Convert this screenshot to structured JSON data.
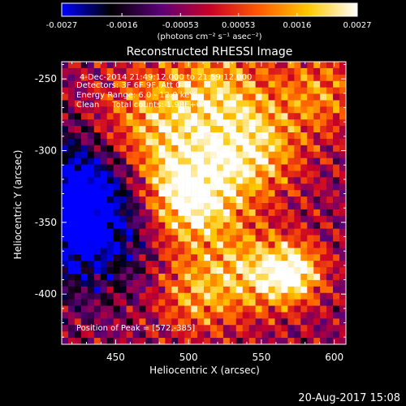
{
  "chart_data": {
    "type": "heatmap",
    "title": "Reconstructed RHESSI Image",
    "xlabel": "Heliocentric X (arcsec)",
    "ylabel": "Heliocentric Y (arcsec)",
    "xlim": [
      413,
      608
    ],
    "ylim": [
      -435,
      -238
    ],
    "x_ticks": [
      450,
      500,
      550,
      600
    ],
    "y_ticks": [
      -250,
      -300,
      -350,
      -400
    ],
    "colorbar": {
      "ticks": [
        "-0.0027",
        "-0.0016",
        "-0.00053",
        "0.00053",
        "0.0016",
        "0.0027"
      ],
      "tick_values": [
        -0.0027,
        -0.0016,
        -0.00053,
        0.00053,
        0.0016,
        0.0027
      ],
      "range": [
        -0.0027,
        0.0027
      ],
      "units": "(photons cm⁻² s⁻¹ asec⁻²)",
      "colors": [
        "#0000ff",
        "#000000",
        "#5a0078",
        "#c80028",
        "#ff5a00",
        "#ffc800",
        "#ffffff"
      ]
    },
    "annotations": {
      "time": "4-Dec-2014 21:49:12.000 to 21:59:12.000",
      "detectors": "Detectors: 3F 6F 9F, Att 0",
      "energy": "Energy Range: 6.0 - 12.0 keV",
      "clean": "Clean     Total counts: 1.98E+04",
      "peak": "Position of Peak = [572,-385]"
    },
    "peak": [
      572,
      -385
    ],
    "grid_resolution": [
      44,
      44
    ],
    "blobs": [
      {
        "x": 500,
        "y": -332,
        "amp": 0.9,
        "sigma": 25
      },
      {
        "x": 545,
        "y": -300,
        "amp": 0.55,
        "sigma": 22
      },
      {
        "x": 470,
        "y": -285,
        "amp": 0.5,
        "sigma": 28
      },
      {
        "x": 572,
        "y": -385,
        "amp": 0.75,
        "sigma": 14
      },
      {
        "x": 545,
        "y": -385,
        "amp": 0.5,
        "sigma": 20
      },
      {
        "x": 505,
        "y": -400,
        "amp": 0.45,
        "sigma": 20
      },
      {
        "x": 590,
        "y": -260,
        "amp": 0.4,
        "sigma": 20
      },
      {
        "x": 520,
        "y": -260,
        "amp": 0.5,
        "sigma": 26
      }
    ],
    "low_region": {
      "x": 425,
      "y": -340,
      "amp": 0.95,
      "sigma": 35
    }
  },
  "footer": {
    "timestamp": "20-Aug-2017 15:08"
  }
}
